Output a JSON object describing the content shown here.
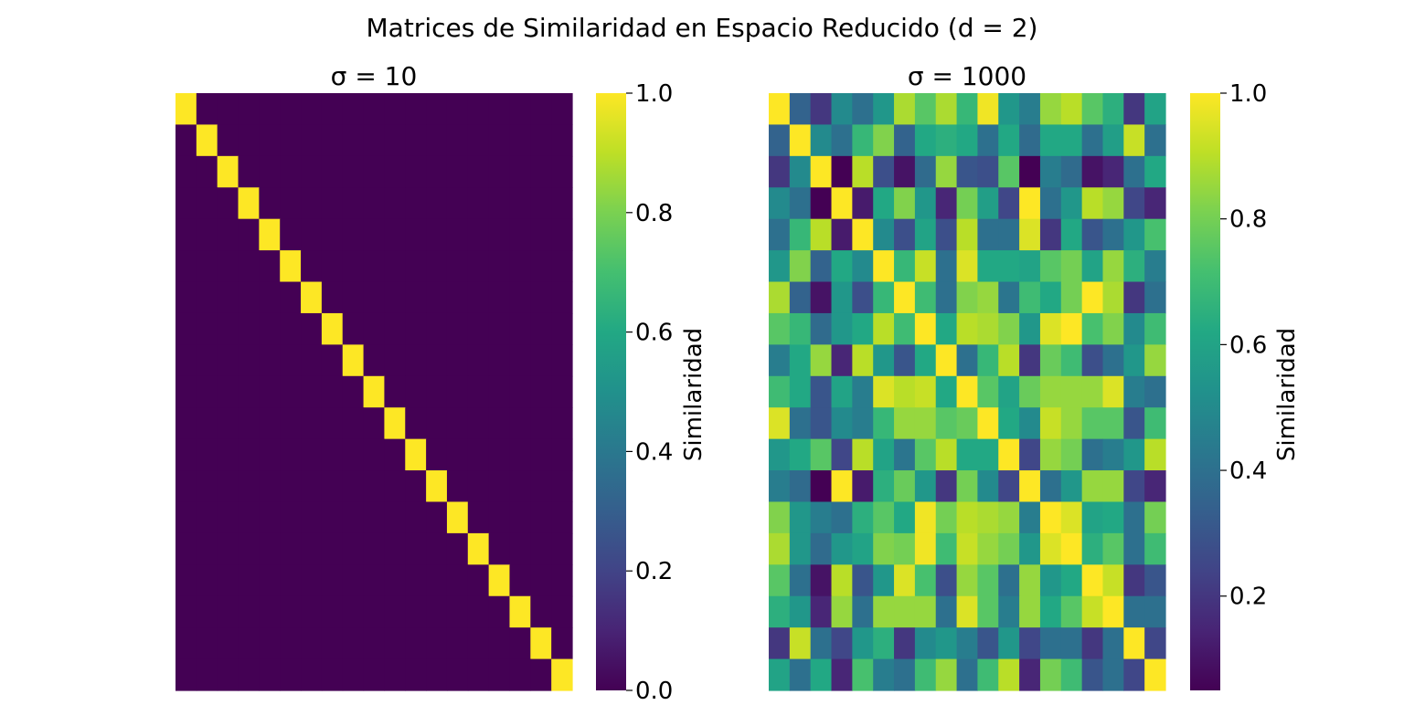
{
  "figure": {
    "suptitle": "Matrices de Similaridad en Espacio Reducido (d = 2)"
  },
  "colormap": "viridis",
  "chart_data": [
    {
      "type": "heatmap",
      "title": "σ = 10",
      "colorbar_label": "Similaridad",
      "vmin": 0.0,
      "vmax": 1.0,
      "colorbar_ticks": [
        "0.0",
        "0.2",
        "0.4",
        "0.6",
        "0.8",
        "1.0"
      ],
      "rows": 19,
      "cols": 19,
      "xticklabels": [],
      "yticklabels": [],
      "values": [
        [
          1.0,
          0,
          0,
          0,
          0,
          0,
          0,
          0,
          0,
          0,
          0,
          0,
          0,
          0,
          0,
          0,
          0,
          0,
          0
        ],
        [
          0,
          1.0,
          0,
          0,
          0,
          0,
          0,
          0,
          0,
          0,
          0,
          0,
          0,
          0,
          0,
          0,
          0,
          0,
          0
        ],
        [
          0,
          0,
          1.0,
          0,
          0,
          0,
          0,
          0,
          0,
          0,
          0,
          0,
          0,
          0,
          0,
          0,
          0,
          0,
          0
        ],
        [
          0,
          0,
          0,
          1.0,
          0,
          0,
          0,
          0,
          0,
          0,
          0,
          0,
          0,
          0,
          0,
          0,
          0,
          0,
          0
        ],
        [
          0,
          0,
          0,
          0,
          1.0,
          0,
          0,
          0,
          0,
          0,
          0,
          0,
          0,
          0,
          0,
          0,
          0,
          0,
          0
        ],
        [
          0,
          0,
          0,
          0,
          0,
          1.0,
          0,
          0,
          0,
          0,
          0,
          0,
          0,
          0,
          0,
          0,
          0,
          0,
          0
        ],
        [
          0,
          0,
          0,
          0,
          0,
          0,
          1.0,
          0,
          0,
          0,
          0,
          0,
          0,
          0,
          0,
          0,
          0,
          0,
          0
        ],
        [
          0,
          0,
          0,
          0,
          0,
          0,
          0,
          1.0,
          0,
          0,
          0,
          0,
          0,
          0,
          0,
          0,
          0,
          0,
          0
        ],
        [
          0,
          0,
          0,
          0,
          0,
          0,
          0,
          0,
          1.0,
          0,
          0,
          0,
          0,
          0,
          0,
          0,
          0,
          0,
          0
        ],
        [
          0,
          0,
          0,
          0,
          0,
          0,
          0,
          0,
          0,
          1.0,
          0,
          0,
          0,
          0,
          0,
          0,
          0,
          0,
          0
        ],
        [
          0,
          0,
          0,
          0,
          0,
          0,
          0,
          0,
          0,
          0,
          1.0,
          0,
          0,
          0,
          0,
          0,
          0,
          0,
          0
        ],
        [
          0,
          0,
          0,
          0,
          0,
          0,
          0,
          0,
          0,
          0,
          0,
          1.0,
          0,
          0,
          0,
          0,
          0,
          0,
          0
        ],
        [
          0,
          0,
          0,
          0,
          0,
          0,
          0,
          0,
          0,
          0,
          0,
          0,
          1.0,
          0,
          0,
          0,
          0,
          0,
          0
        ],
        [
          0,
          0,
          0,
          0,
          0,
          0,
          0,
          0,
          0,
          0,
          0,
          0,
          0,
          1.0,
          0,
          0,
          0,
          0,
          0
        ],
        [
          0,
          0,
          0,
          0,
          0,
          0,
          0,
          0,
          0,
          0,
          0,
          0,
          0,
          0,
          1.0,
          0,
          0,
          0,
          0
        ],
        [
          0,
          0,
          0,
          0,
          0,
          0,
          0,
          0,
          0,
          0,
          0,
          0,
          0,
          0,
          0,
          1.0,
          0,
          0,
          0
        ],
        [
          0,
          0,
          0,
          0,
          0,
          0,
          0,
          0,
          0,
          0,
          0,
          0,
          0,
          0,
          0,
          0,
          1.0,
          0,
          0
        ],
        [
          0,
          0,
          0,
          0,
          0,
          0,
          0,
          0,
          0,
          0,
          0,
          0,
          0,
          0,
          0,
          0,
          0,
          1.0,
          0
        ],
        [
          0,
          0,
          0,
          0,
          0,
          0,
          0,
          0,
          0,
          0,
          0,
          0,
          0,
          0,
          0,
          0,
          0,
          0,
          1.0
        ]
      ]
    },
    {
      "type": "heatmap",
      "title": "σ = 1000",
      "colorbar_label": "Similaridad",
      "vmin": 0.05,
      "vmax": 1.0,
      "colorbar_ticks": [
        "0.2",
        "0.4",
        "0.6",
        "0.8",
        "1.0"
      ],
      "rows": 19,
      "cols": 19,
      "xticklabels": [],
      "yticklabels": [],
      "values": [
        [
          1.0,
          0.35,
          0.2,
          0.5,
          0.4,
          0.55,
          0.88,
          0.75,
          0.88,
          0.68,
          0.98,
          0.55,
          0.45,
          0.85,
          0.9,
          0.75,
          0.65,
          0.2,
          0.6
        ],
        [
          0.35,
          1.0,
          0.5,
          0.4,
          0.68,
          0.82,
          0.35,
          0.62,
          0.65,
          0.62,
          0.4,
          0.62,
          0.38,
          0.62,
          0.62,
          0.4,
          0.58,
          0.92,
          0.4
        ],
        [
          0.2,
          0.5,
          1.0,
          0.05,
          0.9,
          0.28,
          0.1,
          0.38,
          0.85,
          0.3,
          0.28,
          0.75,
          0.05,
          0.45,
          0.38,
          0.1,
          0.15,
          0.4,
          0.62
        ],
        [
          0.5,
          0.4,
          0.05,
          1.0,
          0.12,
          0.62,
          0.82,
          0.55,
          0.15,
          0.8,
          0.58,
          0.25,
          1.0,
          0.4,
          0.55,
          0.9,
          0.85,
          0.25,
          0.15
        ],
        [
          0.4,
          0.68,
          0.9,
          0.12,
          1.0,
          0.5,
          0.28,
          0.6,
          0.28,
          0.9,
          0.4,
          0.4,
          0.95,
          0.2,
          0.62,
          0.3,
          0.4,
          0.55,
          0.72
        ],
        [
          0.55,
          0.82,
          0.35,
          0.62,
          0.5,
          1.0,
          0.68,
          0.92,
          0.4,
          0.95,
          0.62,
          0.62,
          0.6,
          0.75,
          0.8,
          0.6,
          0.85,
          0.65,
          0.45
        ],
        [
          0.88,
          0.35,
          0.1,
          0.55,
          0.28,
          0.68,
          1.0,
          0.7,
          0.4,
          0.82,
          0.85,
          0.42,
          0.7,
          0.62,
          0.8,
          1.0,
          0.88,
          0.2,
          0.4
        ],
        [
          0.75,
          0.68,
          0.38,
          0.55,
          0.62,
          0.9,
          0.7,
          1.0,
          0.62,
          0.9,
          0.88,
          0.82,
          0.55,
          0.95,
          1.0,
          0.72,
          0.82,
          0.5,
          0.7
        ],
        [
          0.45,
          0.62,
          0.85,
          0.15,
          0.9,
          0.55,
          0.3,
          0.62,
          1.0,
          0.4,
          0.68,
          0.9,
          0.2,
          0.78,
          0.7,
          0.28,
          0.4,
          0.55,
          0.85
        ],
        [
          0.7,
          0.62,
          0.3,
          0.6,
          0.45,
          0.95,
          0.9,
          0.92,
          0.62,
          1.0,
          0.75,
          0.6,
          0.78,
          0.85,
          0.85,
          0.85,
          0.95,
          0.45,
          0.4
        ],
        [
          0.95,
          0.4,
          0.3,
          0.5,
          0.45,
          0.68,
          0.85,
          0.85,
          0.75,
          0.78,
          1.0,
          0.62,
          0.5,
          0.92,
          0.85,
          0.75,
          0.75,
          0.3,
          0.7
        ],
        [
          0.55,
          0.62,
          0.75,
          0.25,
          0.9,
          0.6,
          0.42,
          0.75,
          0.9,
          0.62,
          0.62,
          1.0,
          0.25,
          0.85,
          0.8,
          0.4,
          0.45,
          0.55,
          0.9
        ],
        [
          0.45,
          0.38,
          0.05,
          1.0,
          0.12,
          0.65,
          0.78,
          0.55,
          0.2,
          0.8,
          0.5,
          0.25,
          1.0,
          0.4,
          0.55,
          0.85,
          0.85,
          0.25,
          0.15
        ],
        [
          0.82,
          0.55,
          0.45,
          0.4,
          0.65,
          0.75,
          0.62,
          0.98,
          0.8,
          0.9,
          0.88,
          0.85,
          0.45,
          1.0,
          0.95,
          0.6,
          0.62,
          0.4,
          0.8
        ],
        [
          0.88,
          0.55,
          0.38,
          0.55,
          0.6,
          0.82,
          0.8,
          0.98,
          0.7,
          0.92,
          0.85,
          0.8,
          0.55,
          0.95,
          1.0,
          0.65,
          0.75,
          0.4,
          0.7
        ],
        [
          0.75,
          0.4,
          0.1,
          0.9,
          0.3,
          0.55,
          0.95,
          0.72,
          0.28,
          0.85,
          0.75,
          0.4,
          0.85,
          0.55,
          0.62,
          1.0,
          0.92,
          0.2,
          0.3
        ],
        [
          0.65,
          0.55,
          0.15,
          0.85,
          0.4,
          0.85,
          0.85,
          0.85,
          0.4,
          0.95,
          0.75,
          0.45,
          0.85,
          0.62,
          0.75,
          0.92,
          1.0,
          0.4,
          0.4
        ],
        [
          0.2,
          0.92,
          0.4,
          0.25,
          0.55,
          0.65,
          0.2,
          0.5,
          0.55,
          0.45,
          0.3,
          0.55,
          0.25,
          0.4,
          0.4,
          0.2,
          0.4,
          1.0,
          0.25
        ],
        [
          0.6,
          0.4,
          0.62,
          0.15,
          0.72,
          0.45,
          0.4,
          0.7,
          0.85,
          0.4,
          0.7,
          0.9,
          0.15,
          0.8,
          0.7,
          0.3,
          0.4,
          0.25,
          1.0
        ]
      ]
    }
  ]
}
